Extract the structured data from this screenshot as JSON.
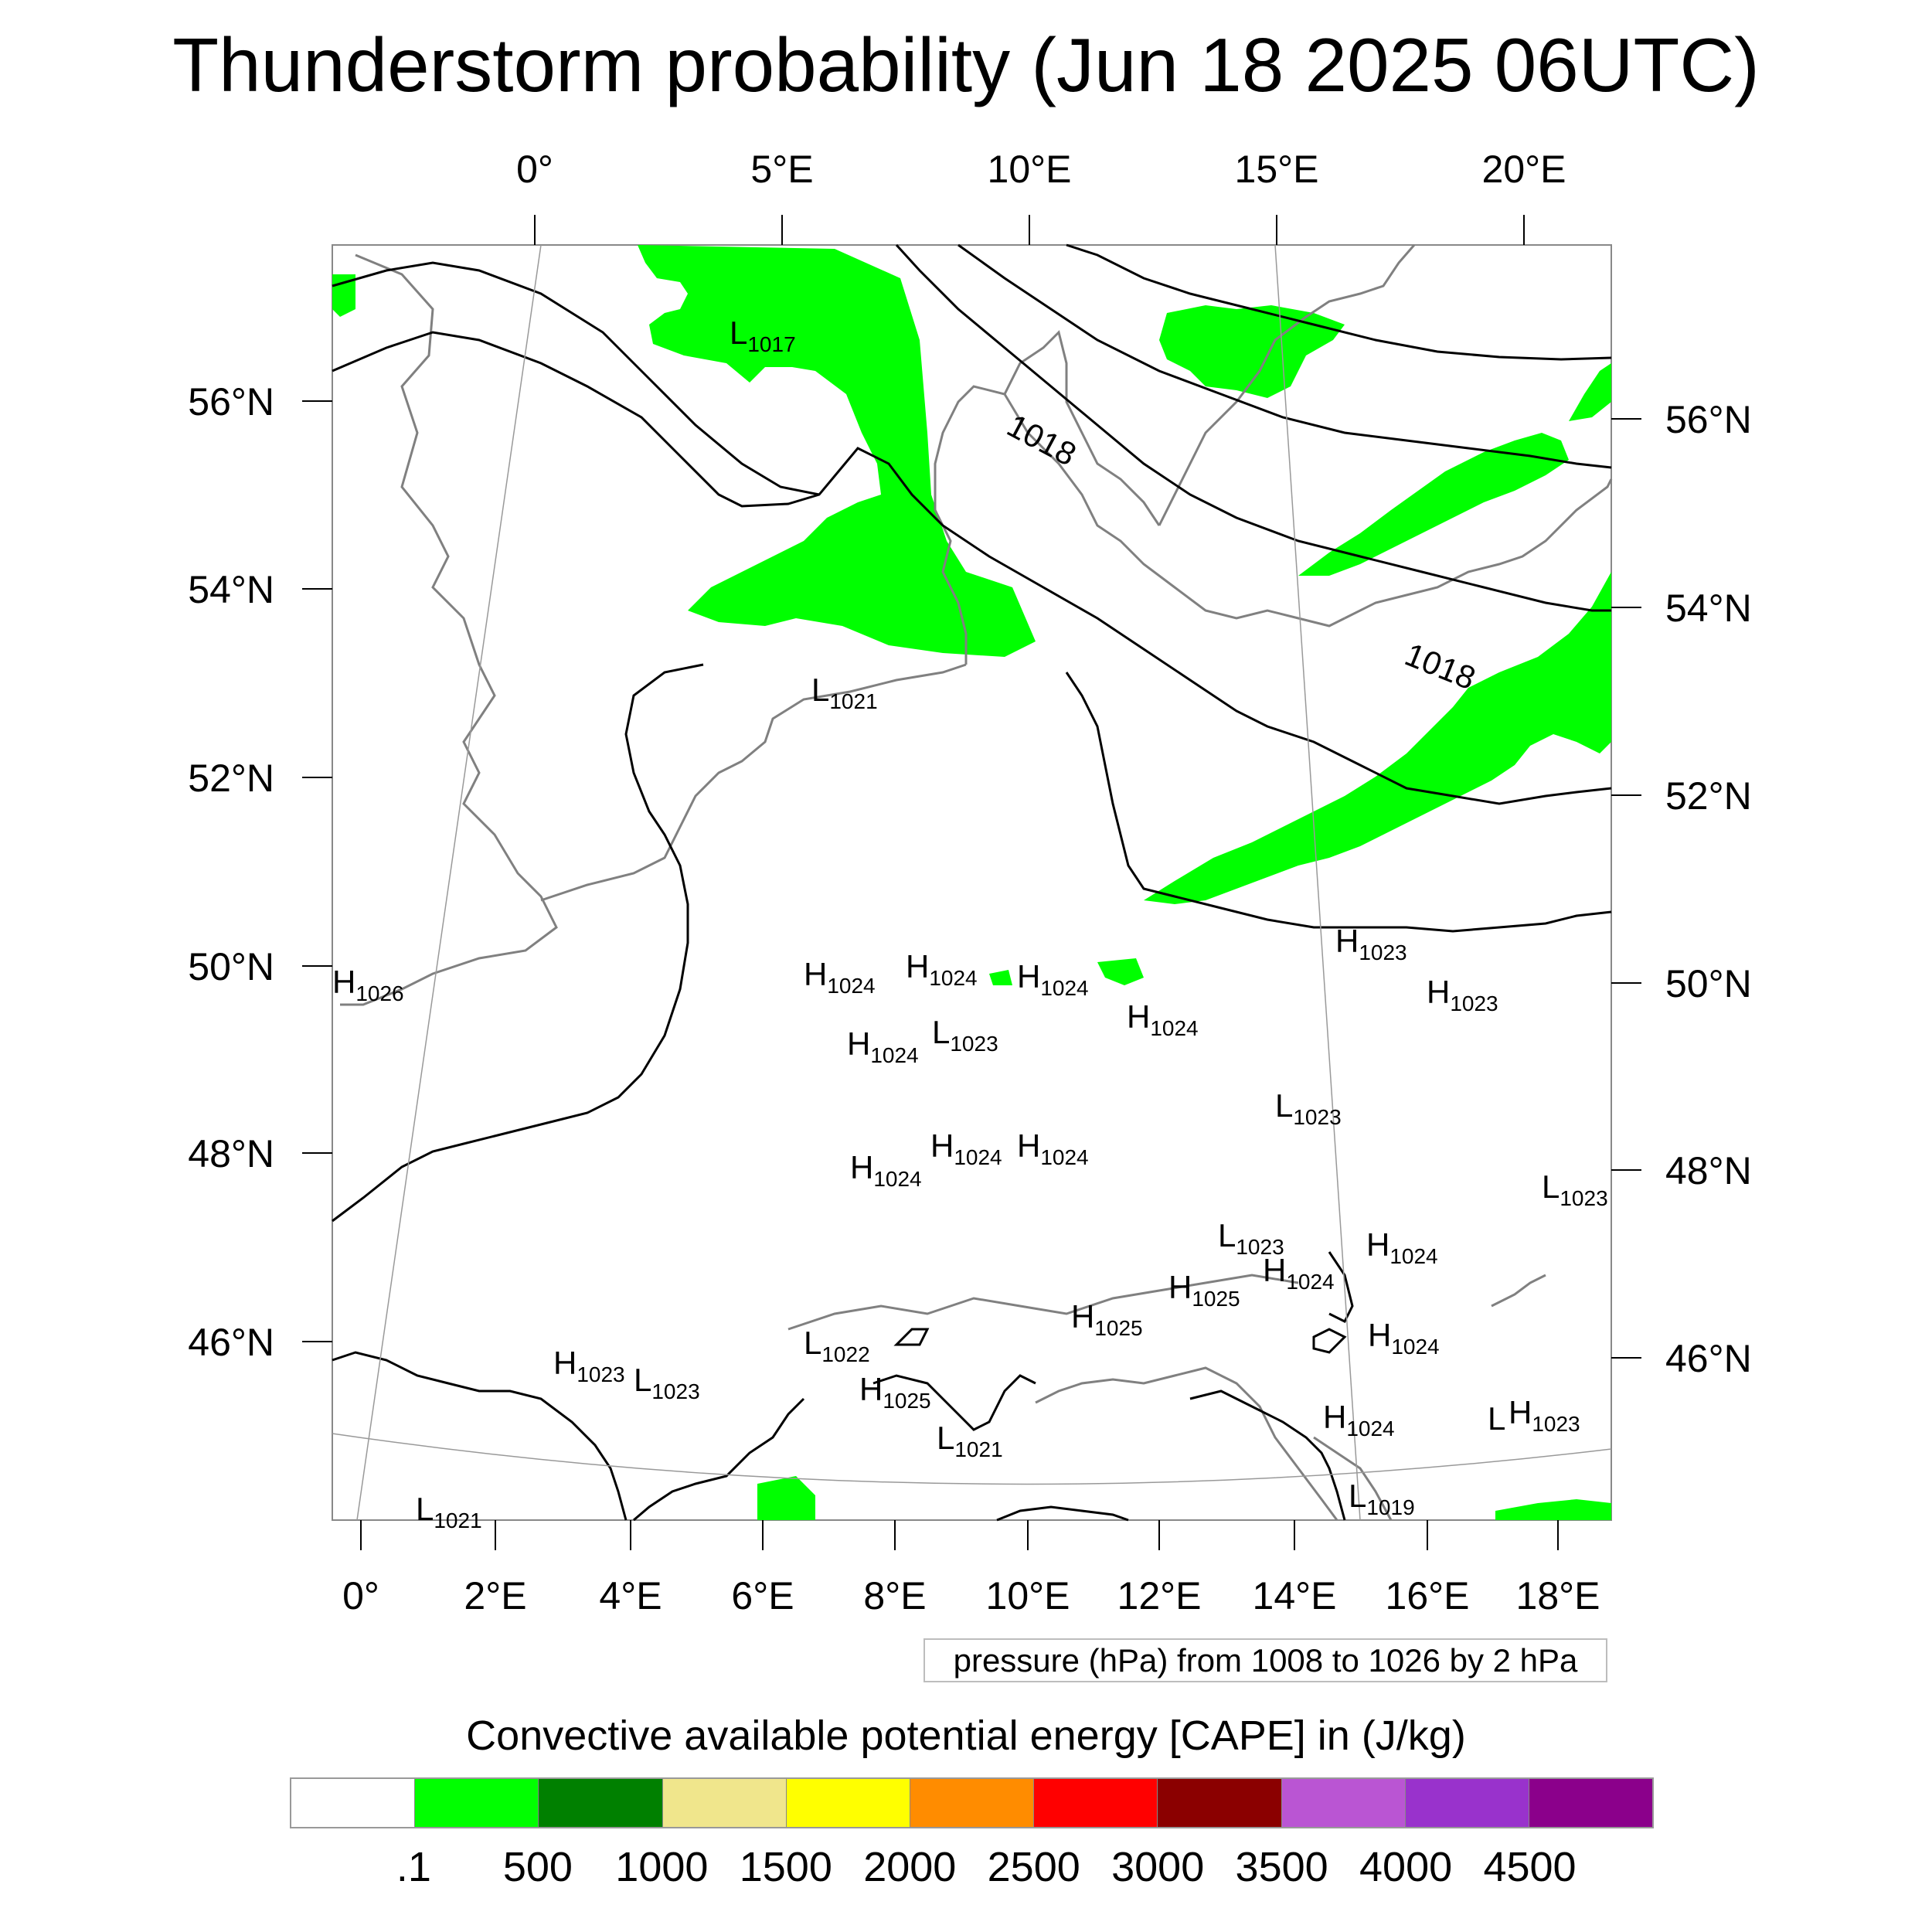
{
  "title": "Thunderstorm probability (Jun 18 2025 06UTC)",
  "axes": {
    "top_lon_ticks": [
      "0°",
      "5°E",
      "10°E",
      "15°E",
      "20°E"
    ],
    "bottom_lon_ticks": [
      "0°",
      "2°E",
      "4°E",
      "6°E",
      "8°E",
      "10°E",
      "12°E",
      "14°E",
      "16°E",
      "18°E"
    ],
    "left_lat_ticks": [
      "56°N",
      "54°N",
      "52°N",
      "50°N",
      "48°N",
      "46°N"
    ],
    "right_lat_ticks": [
      "56°N",
      "54°N",
      "52°N",
      "50°N",
      "48°N",
      "46°N"
    ]
  },
  "isobar_labels": [
    "1018",
    "1018"
  ],
  "pressure_centers": [
    {
      "type": "L",
      "value": "1017"
    },
    {
      "type": "L",
      "value": "1021"
    },
    {
      "type": "H",
      "value": "1026"
    },
    {
      "type": "H",
      "value": "1024"
    },
    {
      "type": "H",
      "value": "1024"
    },
    {
      "type": "H",
      "value": "1024"
    },
    {
      "type": "H",
      "value": "1024"
    },
    {
      "type": "L",
      "value": "1023"
    },
    {
      "type": "H",
      "value": "1024"
    },
    {
      "type": "H",
      "value": "1023"
    },
    {
      "type": "H",
      "value": "1023"
    },
    {
      "type": "L",
      "value": "1023"
    },
    {
      "type": "H",
      "value": "1024"
    },
    {
      "type": "H",
      "value": "1024"
    },
    {
      "type": "H",
      "value": "1024"
    },
    {
      "type": "L",
      "value": "1023"
    },
    {
      "type": "L",
      "value": "1023"
    },
    {
      "type": "H",
      "value": "1024"
    },
    {
      "type": "H",
      "value": "1024"
    },
    {
      "type": "H",
      "value": "1025"
    },
    {
      "type": "H",
      "value": "1025"
    },
    {
      "type": "H",
      "value": "1024"
    },
    {
      "type": "H",
      "value": "1023"
    },
    {
      "type": "L",
      "value": "1023"
    },
    {
      "type": "L",
      "value": "1022"
    },
    {
      "type": "H",
      "value": "1025"
    },
    {
      "type": "L",
      "value": "1021"
    },
    {
      "type": "H",
      "value": "1024"
    },
    {
      "type": "L",
      "value": ""
    },
    {
      "type": "H",
      "value": "1023"
    },
    {
      "type": "L",
      "value": "1019"
    },
    {
      "type": "L",
      "value": "1021"
    }
  ],
  "pressure_note": "pressure (hPa) from 1008 to 1026 by 2 hPa",
  "colorbar": {
    "title": "Convective available potential energy [CAPE] in (J/kg)",
    "colors": [
      "#ffffff",
      "#00ff00",
      "#008000",
      "#f0e68c",
      "#ffff00",
      "#ff8c00",
      "#ff0000",
      "#8b0000",
      "#ba55d3",
      "#9932cc",
      "#8b008b"
    ],
    "labels": [
      ".1",
      "500",
      "1000",
      "1500",
      "2000",
      "2500",
      "3000",
      "3500",
      "4000",
      "4500"
    ]
  },
  "colors": {
    "cape_low": "#00ff00",
    "isobar": "#000000",
    "coastline": "#808080"
  }
}
